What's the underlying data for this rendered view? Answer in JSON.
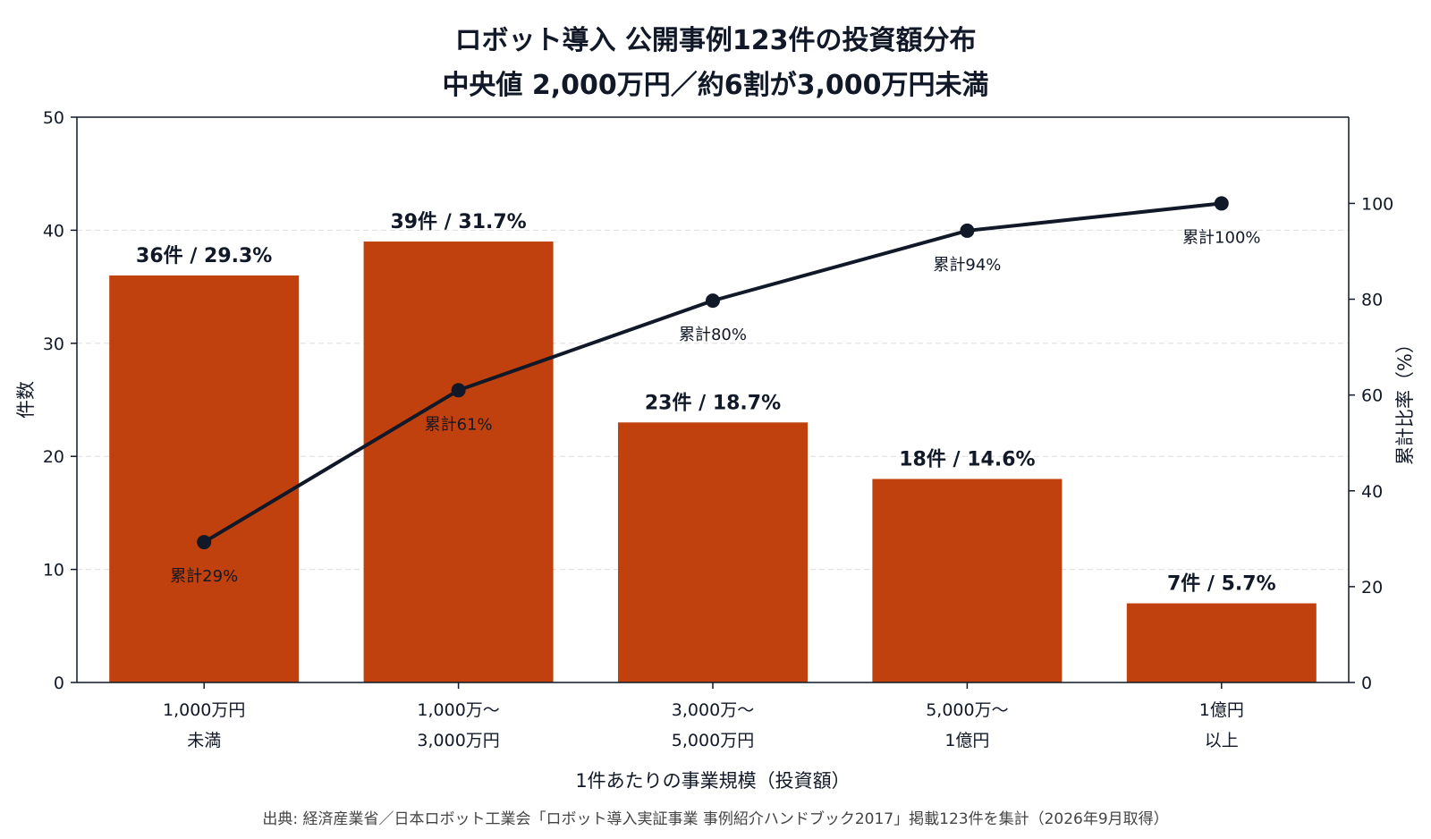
{
  "title": "ロボット導入 公開事例123件の投資額分布",
  "subtitle": "中央値 2,000万円／約6割が3,000万円未満",
  "source": "出典: 経済産業省／日本ロボット工業会「ロボット導入実証事業 事例紹介ハンドブック2017」掲載123件を集計（2026年9月取得）",
  "colors": {
    "bar": "#c0410d",
    "line": "#111827",
    "grid": "#dddddd",
    "axis": "#111827"
  },
  "chart_data": {
    "type": "bar",
    "xlabel": "1件あたりの事業規模（投資額）",
    "ylabel": "件数",
    "y2label": "累計比率（%）",
    "ylim": [
      0,
      50
    ],
    "y2lim": [
      0,
      118
    ],
    "yticks": [
      0,
      10,
      20,
      30,
      40,
      50
    ],
    "y2ticks": [
      0,
      20,
      40,
      60,
      80,
      100
    ],
    "grid": "horizontal-dashed",
    "categories": [
      [
        "1,000万円",
        "未満"
      ],
      [
        "1,000万〜",
        "3,000万円"
      ],
      [
        "3,000万〜",
        "5,000万円"
      ],
      [
        "5,000万〜",
        "1億円"
      ],
      [
        "1億円",
        "以上"
      ]
    ],
    "series": [
      {
        "type": "bar",
        "axis": "left",
        "values": [
          36,
          39,
          23,
          18,
          7
        ],
        "labels": [
          "36件 / 29.3%",
          "39件 / 31.7%",
          "23件 / 18.7%",
          "18件 / 14.6%",
          "7件 / 5.7%"
        ]
      },
      {
        "type": "line",
        "axis": "right",
        "values": [
          29.3,
          61,
          79.7,
          94.3,
          100
        ],
        "labels": [
          "累計29%",
          "累計61%",
          "累計80%",
          "累計94%",
          "累計100%"
        ]
      }
    ]
  }
}
